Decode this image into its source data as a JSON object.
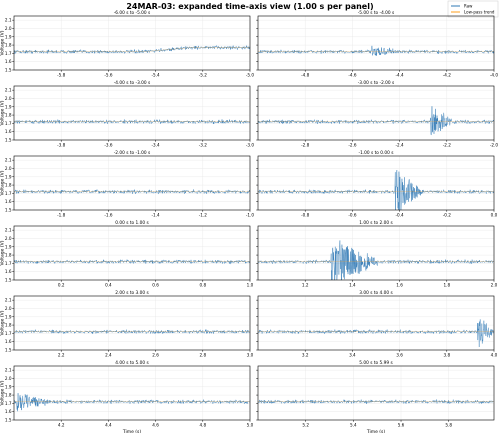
{
  "chart_data": {
    "type": "line",
    "title": "24MAR-03: expanded time-axis view (1.00 s per panel)",
    "xlabel": "Time (s)",
    "ylabel": "Voltage (V)",
    "legend": {
      "placement": "top-right",
      "entries": [
        "Raw",
        "Low-pass trend"
      ]
    },
    "series_colors": {
      "raw": "#2f78b4",
      "trend": "#ff9f1c"
    },
    "grid": true,
    "ylim": [
      1.5,
      2.15
    ],
    "yticks": [
      1.5,
      1.6,
      1.7,
      1.8,
      1.9,
      2.0,
      2.1
    ],
    "baseline": 1.72,
    "panels": [
      {
        "title": "-6.00 s to -5.00 s",
        "xlim": [
          -6,
          -5
        ],
        "xticks": [
          "-5.8",
          "-5.6",
          "-5.4",
          "-5.2",
          "-5.0"
        ],
        "xtick_values": [
          -5.8,
          -5.6,
          -5.4,
          -5.2,
          -5.0
        ],
        "shift": {
          "start": -5.45,
          "end": -5.25,
          "level": 1.77
        },
        "bursts": []
      },
      {
        "title": "-5.00 s to -4.00 s",
        "xlim": [
          -5,
          -4
        ],
        "xticks": [
          "-4.8",
          "-4.6",
          "-4.4",
          "-4.2",
          "-4.0"
        ],
        "xtick_values": [
          -4.8,
          -4.6,
          -4.4,
          -4.2,
          -4.0
        ],
        "bursts": [
          {
            "t": -4.52,
            "amp": 0.07,
            "dur": 0.12
          }
        ]
      },
      {
        "title": "-4.00 s to -3.00 s",
        "xlim": [
          -4,
          -3
        ],
        "xticks": [
          "-3.8",
          "-3.6",
          "-3.4",
          "-3.2",
          "-3.0"
        ],
        "xtick_values": [
          -3.8,
          -3.6,
          -3.4,
          -3.2,
          -3.0
        ],
        "bursts": []
      },
      {
        "title": "-3.00 s to -2.00 s",
        "xlim": [
          -3,
          -2
        ],
        "xticks": [
          "-2.8",
          "-2.6",
          "-2.4",
          "-2.2",
          "-2.0"
        ],
        "xtick_values": [
          -2.8,
          -2.6,
          -2.4,
          -2.2,
          -2.0
        ],
        "bursts": [
          {
            "t": -2.27,
            "amp": 0.22,
            "dur": 0.1
          }
        ]
      },
      {
        "title": "-2.00 s to -1.00 s",
        "xlim": [
          -2,
          -1
        ],
        "xticks": [
          "-1.8",
          "-1.6",
          "-1.4",
          "-1.2",
          "-1.0"
        ],
        "xtick_values": [
          -1.8,
          -1.6,
          -1.4,
          -1.2,
          -1.0
        ],
        "bursts": []
      },
      {
        "title": "-1.00 s to 0.00 s",
        "xlim": [
          -1,
          0
        ],
        "xticks": [
          "-0.8",
          "-0.6",
          "-0.4",
          "-0.2",
          "0.0"
        ],
        "xtick_values": [
          -0.8,
          -0.6,
          -0.4,
          -0.2,
          0.0
        ],
        "bursts": [
          {
            "t": -0.42,
            "amp": 0.3,
            "dur": 0.12
          }
        ]
      },
      {
        "title": "0.00 s to 1.00 s",
        "xlim": [
          0,
          1
        ],
        "xticks": [
          "0.2",
          "0.4",
          "0.6",
          "0.8",
          "1.0"
        ],
        "xtick_values": [
          0.2,
          0.4,
          0.6,
          0.8,
          1.0
        ],
        "bursts": []
      },
      {
        "title": "1.00 s to 2.00 s",
        "xlim": [
          1,
          2
        ],
        "xticks": [
          "1.2",
          "1.4",
          "1.6",
          "1.8",
          "2.0"
        ],
        "xtick_values": [
          1.2,
          1.4,
          1.6,
          1.8,
          2.0
        ],
        "bursts": [
          {
            "t": 1.31,
            "amp": 0.3,
            "dur": 0.22
          }
        ]
      },
      {
        "title": "2.00 s to 3.00 s",
        "xlim": [
          2,
          3
        ],
        "xticks": [
          "2.2",
          "2.4",
          "2.6",
          "2.8",
          "3.0"
        ],
        "xtick_values": [
          2.2,
          2.4,
          2.6,
          2.8,
          3.0
        ],
        "bursts": []
      },
      {
        "title": "3.00 s to 4.00 s",
        "xlim": [
          3,
          4
        ],
        "xticks": [
          "3.2",
          "3.4",
          "3.6",
          "3.8",
          "4.0"
        ],
        "xtick_values": [
          3.2,
          3.4,
          3.6,
          3.8,
          4.0
        ],
        "bursts": [
          {
            "t": 3.93,
            "amp": 0.22,
            "dur": 0.07
          }
        ]
      },
      {
        "title": "4.00 s to 5.00 s",
        "xlim": [
          4,
          5
        ],
        "xticks": [
          "4.2",
          "4.4",
          "4.6",
          "4.8",
          "5.0"
        ],
        "xtick_values": [
          4.2,
          4.4,
          4.6,
          4.8,
          5.0
        ],
        "bursts": [
          {
            "t": 4.01,
            "amp": 0.12,
            "dur": 0.15
          }
        ]
      },
      {
        "title": "5.00 s to 5.99 s",
        "xlim": [
          5,
          5.99
        ],
        "xticks": [
          "5.2",
          "5.4",
          "5.6",
          "5.8"
        ],
        "xtick_values": [
          5.2,
          5.4,
          5.6,
          5.8
        ],
        "bursts": []
      }
    ]
  }
}
